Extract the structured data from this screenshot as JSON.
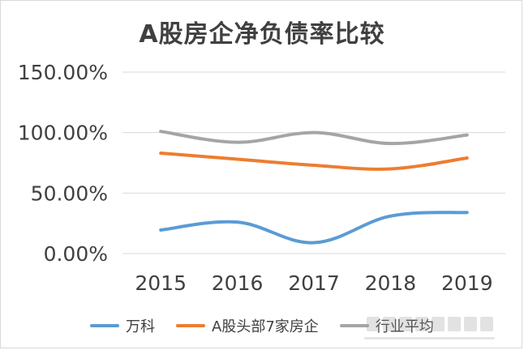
{
  "chart_data": {
    "type": "line",
    "title": "A股房企净负债率比较",
    "categories": [
      "2015",
      "2016",
      "2017",
      "2018",
      "2019"
    ],
    "yticks": [
      "0.00%",
      "50.00%",
      "100.00%",
      "150.00%"
    ],
    "ylim": [
      0,
      150
    ],
    "grid": true,
    "legend_position": "bottom",
    "series": [
      {
        "name": "万科",
        "color": "#5b9bd5",
        "values": [
          19.5,
          26.0,
          9.0,
          31.0,
          34.0
        ]
      },
      {
        "name": "A股头部7家房企",
        "color": "#ed7d31",
        "values": [
          83.0,
          78.0,
          73.0,
          70.0,
          79.0
        ]
      },
      {
        "name": "行业平均",
        "color": "#a5a5a5",
        "values": [
          101.0,
          92.0,
          100.0,
          91.0,
          98.0
        ]
      }
    ]
  },
  "watermark": {
    "icon": "newspaper-logo-icon"
  }
}
